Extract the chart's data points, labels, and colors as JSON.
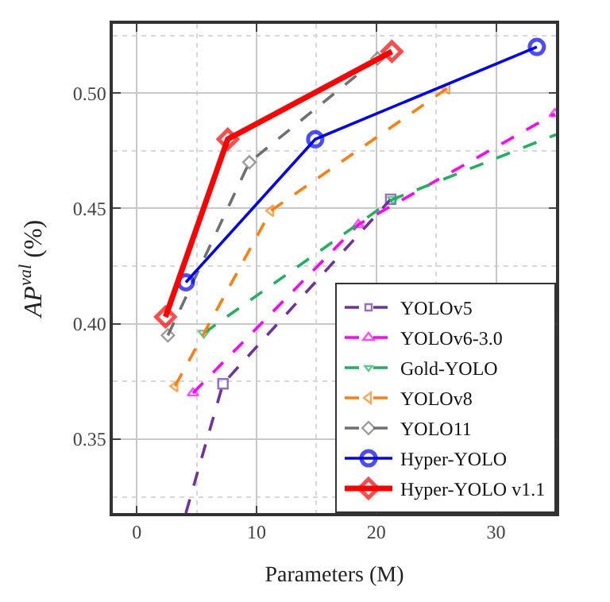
{
  "chart_data": {
    "type": "line",
    "xlabel": "Parameters (M)",
    "ylabel": "AP$^{val}$ (%)",
    "xlim": [
      -2,
      35
    ],
    "xticks": [
      0,
      10,
      20,
      30
    ],
    "ylim": [
      0.318,
      0.53
    ],
    "yticks": [
      {
        "value": 0.35,
        "label": "0.35"
      },
      {
        "value": 0.4,
        "label": "0.40"
      },
      {
        "value": 0.45,
        "label": "0.45"
      },
      {
        "value": 0.5,
        "label": "0.50"
      }
    ],
    "grid": true,
    "legend": "bottom right",
    "series": [
      {
        "name": "YOLOv5",
        "color": "#7030a0",
        "marker": "square",
        "line_style": "dashed",
        "x": [
          4.1,
          7.2,
          21.2
        ],
        "values": [
          0.318,
          0.374,
          0.454
        ]
      },
      {
        "name": "YOLOv6-3.0",
        "color": "#ff00ff",
        "marker": "triangle-up",
        "line_style": "dashed",
        "x": [
          4.7,
          18.5,
          34.9
        ],
        "values": [
          0.37,
          0.443,
          0.491
        ]
      },
      {
        "name": "Gold-YOLO",
        "color": "#20b060",
        "marker": "triangle-down",
        "line_style": "dashed",
        "x": [
          5.6,
          21.4,
          35
        ],
        "values": [
          0.396,
          0.454,
          0.482
        ]
      },
      {
        "name": "YOLOv8",
        "color": "#ff7f0e",
        "marker": "triangle-left",
        "line_style": "dashed",
        "x": [
          3.2,
          11.2,
          25.9
        ],
        "values": [
          0.373,
          0.449,
          0.502
        ]
      },
      {
        "name": "YOLO11",
        "color": "#707070",
        "marker": "diamond",
        "line_style": "dashed",
        "x": [
          2.6,
          9.4,
          20.1
        ],
        "values": [
          0.395,
          0.47,
          0.515
        ]
      },
      {
        "name": "Hyper-YOLO",
        "color": "#0000ff",
        "marker": "circle",
        "line_style": "solid",
        "x": [
          4.1,
          14.9,
          33.4
        ],
        "values": [
          0.418,
          0.48,
          0.52
        ]
      },
      {
        "name": "Hyper-YOLO v1.1",
        "color": "#ff0000",
        "marker": "diamond",
        "line_style": "solid",
        "x": [
          2.4,
          7.6,
          21.3
        ],
        "values": [
          0.403,
          0.48,
          0.518
        ]
      }
    ]
  }
}
